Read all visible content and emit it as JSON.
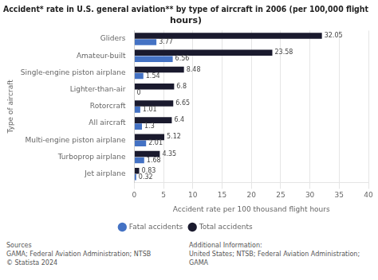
{
  "chart_data": {
    "type": "bar",
    "orientation": "horizontal",
    "title": "Accident* rate in U.S. general aviation** by type of aircraft in 2006 (per 100,000 flight\nhours)",
    "categories": [
      "Gliders",
      "Amateur-built",
      "Single-engine piston airplane",
      "Lighter-than-air",
      "Rotorcraft",
      "All aircraft",
      "Multi-engine piston airplane",
      "Turboprop airplane",
      "Jet airplane"
    ],
    "series": [
      {
        "name": "Total accidents",
        "color": "#1a1a2e",
        "values": [
          32.05,
          23.58,
          8.48,
          6.8,
          6.65,
          6.4,
          5.12,
          4.35,
          0.83
        ]
      },
      {
        "name": "Fatal accidents",
        "color": "#4472c4",
        "values": [
          3.77,
          6.56,
          1.54,
          0,
          1.01,
          1.3,
          2.01,
          1.68,
          0.32
        ]
      }
    ],
    "xlabel": "Accident rate per 100 thousand flight hours",
    "ylabel": "Type of aircraft",
    "xlim": [
      0,
      40
    ],
    "xticks": [
      0,
      5,
      10,
      15,
      20,
      25,
      30,
      35,
      40
    ],
    "grid": true,
    "legend": "bottom",
    "data_labels": true,
    "annotations": [
      "Sources\nGAMA; Federal Aviation Administration; NTSB\n© Statista 2024",
      "Additional Information:\nUnited States; NTSB; Federal Aviation Administration; GAMA"
    ]
  }
}
